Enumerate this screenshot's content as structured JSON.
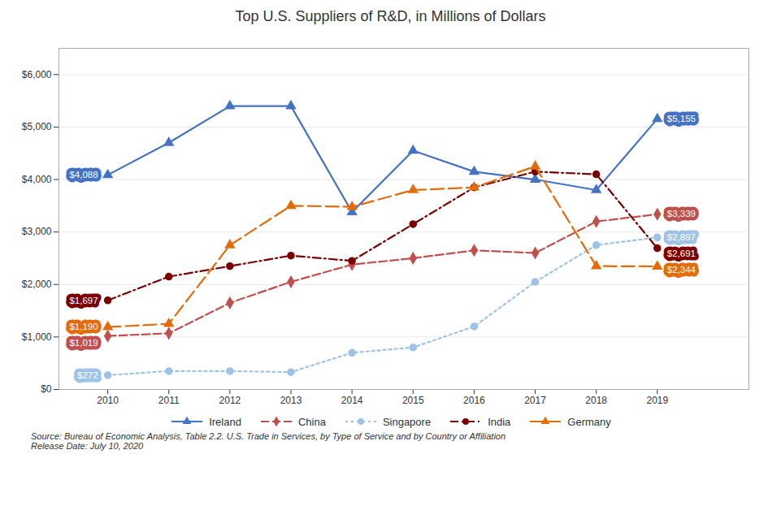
{
  "chart_data": {
    "type": "line",
    "title": "Top U.S. Suppliers of R&D, in Millions of Dollars",
    "x": [
      2010,
      2011,
      2012,
      2013,
      2014,
      2015,
      2016,
      2017,
      2018,
      2019
    ],
    "xlim": [
      2009.2,
      2020.5
    ],
    "xticks": [
      2010,
      2011,
      2012,
      2013,
      2014,
      2015,
      2016,
      2017,
      2018,
      2019
    ],
    "ylim": [
      0,
      6500
    ],
    "yticks": [
      {
        "value": 0,
        "label": "$0"
      },
      {
        "value": 1000,
        "label": "$1,000"
      },
      {
        "value": 2000,
        "label": "$2,000"
      },
      {
        "value": 3000,
        "label": "$3,000"
      },
      {
        "value": 4000,
        "label": "$4,000"
      },
      {
        "value": 5000,
        "label": "$5,000"
      },
      {
        "value": 6000,
        "label": "$6,000"
      }
    ],
    "grid": true,
    "legend": "bottom",
    "series": [
      {
        "name": "Ireland",
        "color": "#4472C4",
        "marker": "triangle",
        "line_style": "solid",
        "values": [
          4088,
          4700,
          5400,
          5400,
          3380,
          4550,
          4150,
          4000,
          3800,
          5155
        ]
      },
      {
        "name": "China",
        "color": "#C0504D",
        "marker": "diamond",
        "line_style": "dashed",
        "values": [
          1019,
          1070,
          1650,
          2050,
          2380,
          2500,
          2650,
          2600,
          3200,
          3339
        ]
      },
      {
        "name": "Singapore",
        "color": "#9DC3E6",
        "marker": "circle",
        "line_style": "dotted",
        "values": [
          272,
          350,
          350,
          330,
          700,
          800,
          1200,
          2050,
          2750,
          2897
        ]
      },
      {
        "name": "India",
        "color": "#7B0000",
        "marker": "circle",
        "line_style": "dashdot",
        "values": [
          1697,
          2150,
          2350,
          2550,
          2450,
          3150,
          3850,
          4150,
          4100,
          2691
        ]
      },
      {
        "name": "Germany",
        "color": "#E36C0A",
        "marker": "triangle",
        "line_style": "longdash",
        "values": [
          1190,
          1250,
          2750,
          3500,
          3480,
          3800,
          3850,
          4250,
          2350,
          2344
        ]
      }
    ],
    "annotations": [
      {
        "text": "$4,088",
        "x": 2010,
        "y": 4088,
        "color": "#4472C4"
      },
      {
        "text": "$1,019",
        "x": 2010,
        "y": 1019,
        "color": "#C0504D"
      },
      {
        "text": "$272",
        "x": 2010,
        "y": 272,
        "color": "#9DC3E6"
      },
      {
        "text": "$1,697",
        "x": 2010,
        "y": 1697,
        "color": "#7B0000"
      },
      {
        "text": "$1,190",
        "x": 2010,
        "y": 1190,
        "color": "#E36C0A"
      },
      {
        "text": "$5,155",
        "x": 2019,
        "y": 5155,
        "color": "#4472C4"
      },
      {
        "text": "$3,339",
        "x": 2019,
        "y": 3339,
        "color": "#C0504D"
      },
      {
        "text": "$2,897",
        "x": 2019,
        "y": 2897,
        "color": "#9DC3E6"
      },
      {
        "text": "$2,691",
        "x": 2019,
        "y": 2691,
        "color": "#7B0000"
      },
      {
        "text": "$2,344",
        "x": 2019,
        "y": 2344,
        "color": "#E36C0A"
      }
    ],
    "source": "Source: Bureau of Economic Analysis, Table 2.2. U.S. Trade in Services, by Type of Service and by Country or Affiliation\nRelease Date: July 10, 2020"
  }
}
